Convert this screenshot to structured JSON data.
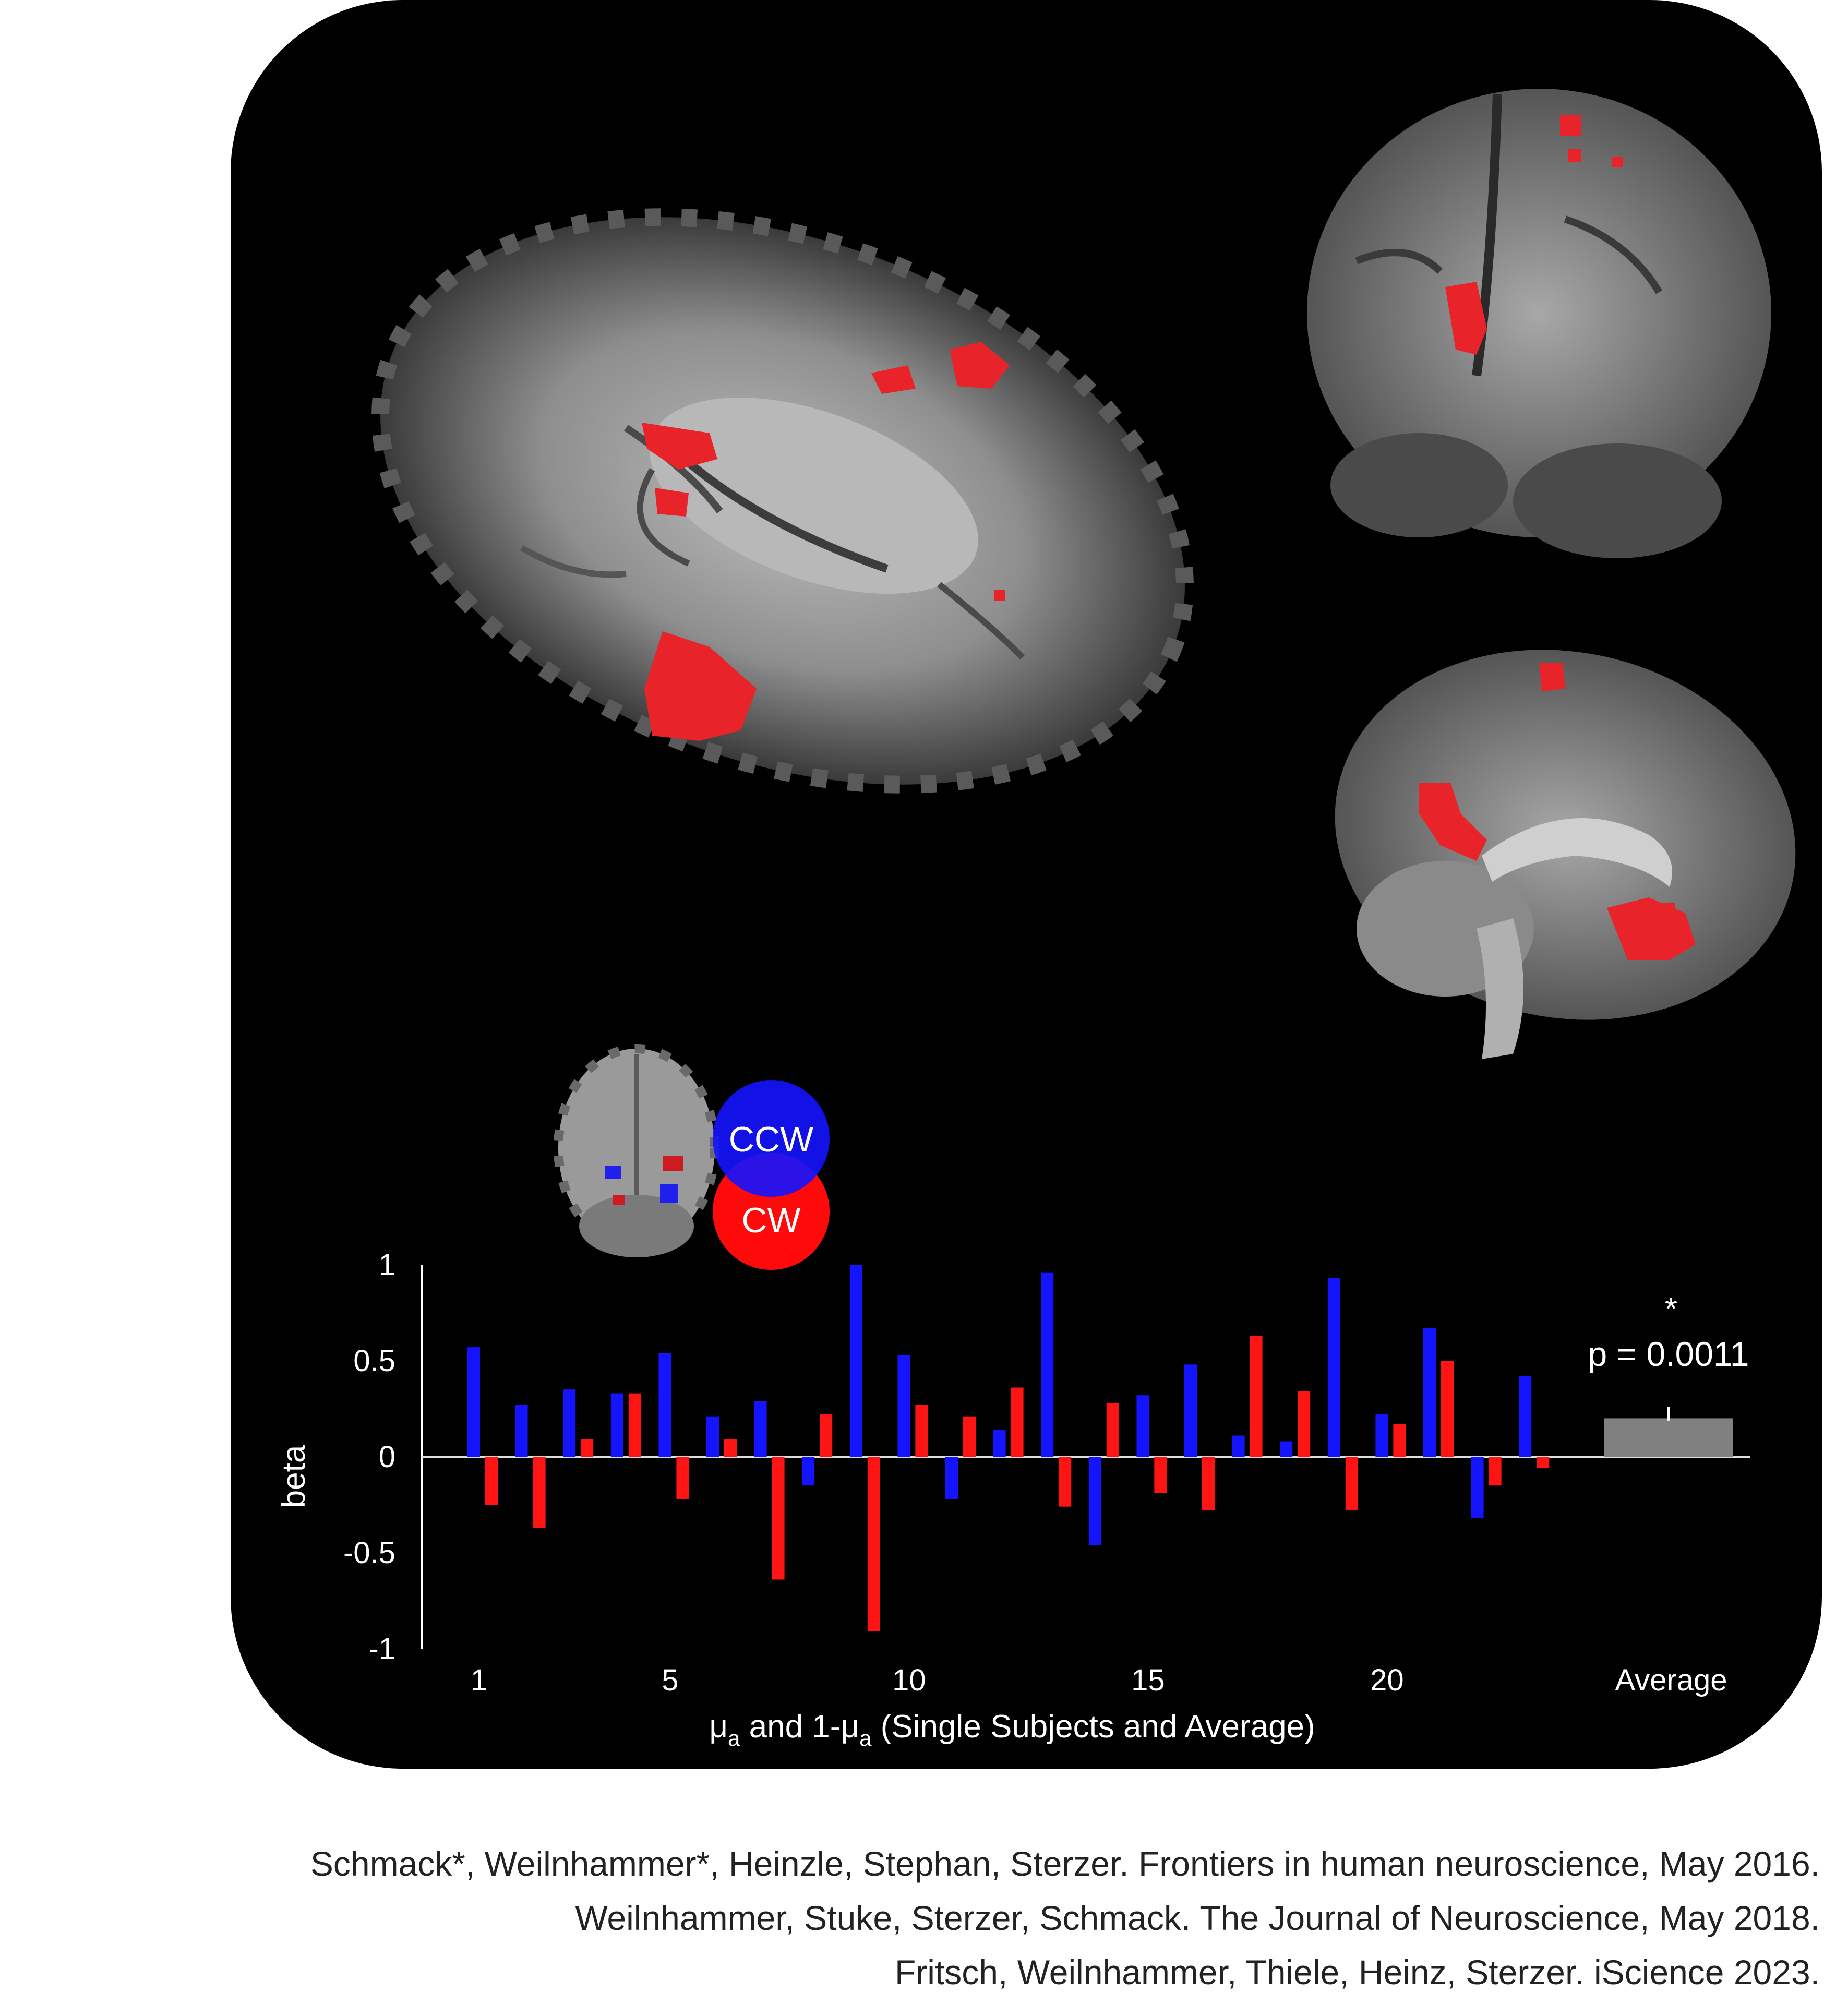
{
  "chart_data": {
    "type": "bar",
    "categories": [
      "1",
      "2",
      "3",
      "4",
      "5",
      "6",
      "7",
      "8",
      "9",
      "10",
      "11",
      "12",
      "13",
      "14",
      "15",
      "16",
      "17",
      "18",
      "19",
      "20",
      "21",
      "22",
      "23"
    ],
    "x_tick_labels": [
      "1",
      "5",
      "10",
      "15",
      "20",
      "Average"
    ],
    "series": [
      {
        "name": "CCW",
        "color": "#1414ff",
        "values": [
          0.57,
          0.27,
          0.35,
          0.33,
          0.54,
          0.21,
          0.29,
          -0.15,
          1.0,
          0.53,
          -0.22,
          0.14,
          0.96,
          -0.46,
          0.32,
          0.48,
          0.11,
          0.08,
          0.93,
          0.22,
          0.67,
          -0.32,
          0.42
        ]
      },
      {
        "name": "CW",
        "color": "#ff1414",
        "values": [
          -0.25,
          -0.37,
          0.09,
          0.33,
          -0.22,
          0.09,
          -0.64,
          0.22,
          -0.91,
          0.27,
          0.21,
          0.36,
          -0.26,
          0.28,
          -0.19,
          -0.28,
          0.63,
          0.34,
          -0.28,
          0.17,
          0.5,
          -0.15,
          -0.06
        ]
      }
    ],
    "average": {
      "label": "Average",
      "value": 0.2,
      "error": 0.06,
      "color": "#808080"
    },
    "annotation_star": "*",
    "annotation_p": "p = 0.0011",
    "ylabel": "beta",
    "xlabel_parts": [
      "μ",
      "a",
      " and 1-μ",
      "a",
      " (Single Subjects and Average)"
    ],
    "ylim": [
      -1,
      1
    ],
    "y_ticks": [
      "1",
      "0.5",
      "0",
      "-0.5",
      "-1"
    ],
    "grid": false
  },
  "legend": {
    "ccw_label": "CCW",
    "cw_label": "CW",
    "ccw_color": "#1414ff",
    "cw_color": "#ff0a0a"
  },
  "citations": [
    "Schmack*, Weilnhammer*, Heinzle, Stephan, Sterzer. Frontiers in human neuroscience, May 2016.",
    "Weilnhammer, Stuke,  Sterzer,  Schmack. The Journal of Neuroscience, May 2018.",
    "Fritsch, Weilnhammer, Thiele,  Heinz, Sterzer. iScience 2023."
  ]
}
